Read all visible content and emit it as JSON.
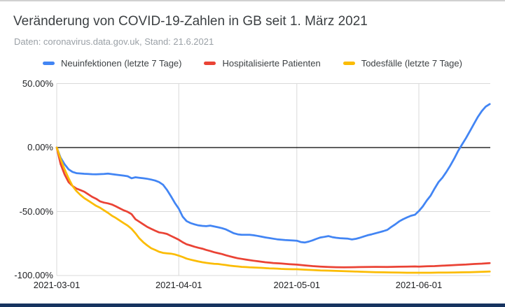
{
  "page": {
    "title": "Veränderung von COVID-19-Zahlen in GB seit 1. März 2021",
    "subtitle": "Daten: coronavirus.data.gov.uk, Stand: 21.6.2021"
  },
  "colors": {
    "series_blue": "#4285f4",
    "series_red": "#ea4335",
    "series_yellow": "#fbbc04",
    "grid": "#d9d9d9",
    "zero_line": "#000000",
    "title_text": "#3c4043",
    "subtitle_text": "#9aa0a6",
    "legend_text": "#3c4043",
    "tick_text": "#202124",
    "top_border": "#d0d0d0",
    "bottom_bar": "#16335f"
  },
  "chart_data": {
    "type": "line",
    "title": "Veränderung von COVID-19-Zahlen in GB seit 1. März 2021",
    "subtitle": "Daten: coronavirus.data.gov.uk, Stand: 21.6.2021",
    "xlabel": "",
    "ylabel": "",
    "grid": true,
    "legend_position": "top",
    "x_axis": {
      "tick_labels": [
        "2021-03-01",
        "2021-04-01",
        "2021-05-01",
        "2021-06-01"
      ],
      "tick_days": [
        0,
        31,
        61,
        92
      ],
      "range_days": [
        0,
        110
      ]
    },
    "y_axis": {
      "unit": "%",
      "tick_labels": [
        "50.00%",
        "0.00%",
        "-50.00%",
        "-100.00%"
      ],
      "tick_values": [
        50,
        0,
        -50,
        -100
      ],
      "range": [
        -100,
        50
      ]
    },
    "series": [
      {
        "name": "Neuinfektionen (letzte 7 Tage)",
        "color": "#4285f4",
        "points": [
          [
            0,
            0
          ],
          [
            1,
            -8
          ],
          [
            2,
            -13
          ],
          [
            3,
            -17
          ],
          [
            4,
            -19
          ],
          [
            5,
            -20
          ],
          [
            7,
            -20.5
          ],
          [
            9,
            -20.8
          ],
          [
            10,
            -20.9
          ],
          [
            12,
            -20.6
          ],
          [
            13,
            -20.4
          ],
          [
            15,
            -21.2
          ],
          [
            17,
            -21.9
          ],
          [
            18,
            -22.4
          ],
          [
            19,
            -24
          ],
          [
            20,
            -23.2
          ],
          [
            21,
            -23.6
          ],
          [
            22,
            -24
          ],
          [
            23,
            -24.4
          ],
          [
            24,
            -25
          ],
          [
            25,
            -25.8
          ],
          [
            26,
            -27
          ],
          [
            27,
            -29
          ],
          [
            28,
            -33
          ],
          [
            29,
            -38
          ],
          [
            30,
            -43.2
          ],
          [
            31,
            -47.7
          ],
          [
            32,
            -54
          ],
          [
            33,
            -57.5
          ],
          [
            34,
            -59
          ],
          [
            35,
            -60
          ],
          [
            36,
            -60.8
          ],
          [
            37,
            -61.2
          ],
          [
            38,
            -61.4
          ],
          [
            39,
            -61
          ],
          [
            41,
            -62.3
          ],
          [
            42,
            -63
          ],
          [
            43,
            -64
          ],
          [
            44,
            -65.5
          ],
          [
            45,
            -67
          ],
          [
            46,
            -67.8
          ],
          [
            47,
            -68.2
          ],
          [
            49,
            -68.2
          ],
          [
            50,
            -68.5
          ],
          [
            51,
            -69
          ],
          [
            52,
            -69.6
          ],
          [
            53,
            -70.2
          ],
          [
            54,
            -70.7
          ],
          [
            55,
            -71.2
          ],
          [
            56,
            -71.7
          ],
          [
            57,
            -72
          ],
          [
            58,
            -72.3
          ],
          [
            60,
            -72.6
          ],
          [
            61,
            -72.8
          ],
          [
            62,
            -73.8
          ],
          [
            63,
            -74.2
          ],
          [
            64,
            -73.5
          ],
          [
            65,
            -72.5
          ],
          [
            66,
            -71.3
          ],
          [
            67,
            -70.3
          ],
          [
            68,
            -69.8
          ],
          [
            69,
            -69.2
          ],
          [
            70,
            -70
          ],
          [
            71,
            -70.5
          ],
          [
            72,
            -70.8
          ],
          [
            74,
            -71.2
          ],
          [
            75,
            -71.8
          ],
          [
            76,
            -71.3
          ],
          [
            77,
            -70.5
          ],
          [
            78,
            -69.5
          ],
          [
            79,
            -68.5
          ],
          [
            80,
            -67.8
          ],
          [
            81,
            -67
          ],
          [
            82,
            -66.2
          ],
          [
            83,
            -65.3
          ],
          [
            84,
            -64.3
          ],
          [
            85,
            -62
          ],
          [
            86,
            -60
          ],
          [
            87,
            -57.7
          ],
          [
            88,
            -56
          ],
          [
            89,
            -54.6
          ],
          [
            90,
            -53.3
          ],
          [
            91,
            -52.5
          ],
          [
            92,
            -49.6
          ],
          [
            93,
            -46
          ],
          [
            94,
            -41.5
          ],
          [
            95,
            -37.5
          ],
          [
            96,
            -32
          ],
          [
            97,
            -27
          ],
          [
            98,
            -23.5
          ],
          [
            99,
            -19
          ],
          [
            100,
            -14
          ],
          [
            101,
            -8.5
          ],
          [
            102,
            -2.5
          ],
          [
            103,
            2.5
          ],
          [
            104,
            7.5
          ],
          [
            105,
            13
          ],
          [
            106,
            18.5
          ],
          [
            107,
            24
          ],
          [
            108,
            28.5
          ],
          [
            109,
            32
          ],
          [
            110,
            34
          ]
        ]
      },
      {
        "name": "Hospitalisierte Patienten",
        "color": "#ea4335",
        "points": [
          [
            0,
            0
          ],
          [
            1,
            -13
          ],
          [
            2,
            -21
          ],
          [
            3,
            -27
          ],
          [
            4,
            -30
          ],
          [
            5,
            -32
          ],
          [
            6,
            -33.2
          ],
          [
            7,
            -34.5
          ],
          [
            8,
            -36.5
          ],
          [
            9,
            -38.5
          ],
          [
            10,
            -40
          ],
          [
            11,
            -42
          ],
          [
            12,
            -43
          ],
          [
            13,
            -43.6
          ],
          [
            14,
            -44.5
          ],
          [
            15,
            -45.9
          ],
          [
            16,
            -47.5
          ],
          [
            17,
            -49
          ],
          [
            18,
            -50.2
          ],
          [
            19,
            -52
          ],
          [
            20,
            -56
          ],
          [
            21,
            -58
          ],
          [
            22,
            -60
          ],
          [
            23,
            -62
          ],
          [
            24,
            -63.5
          ],
          [
            25,
            -65
          ],
          [
            26,
            -66.3
          ],
          [
            27,
            -66.8
          ],
          [
            28,
            -67.5
          ],
          [
            29,
            -69
          ],
          [
            30,
            -70.5
          ],
          [
            31,
            -72
          ],
          [
            32,
            -74
          ],
          [
            33,
            -75.6
          ],
          [
            34,
            -76.5
          ],
          [
            35,
            -77.5
          ],
          [
            36,
            -78.3
          ],
          [
            37,
            -79
          ],
          [
            38,
            -80
          ],
          [
            39,
            -80.8
          ],
          [
            40,
            -81.8
          ],
          [
            41,
            -82.5
          ],
          [
            42,
            -83.2
          ],
          [
            43,
            -84.2
          ],
          [
            44,
            -85
          ],
          [
            45,
            -85.8
          ],
          [
            46,
            -86.5
          ],
          [
            47,
            -87
          ],
          [
            48,
            -87.5
          ],
          [
            49,
            -88
          ],
          [
            50,
            -88.4
          ],
          [
            51,
            -88.8
          ],
          [
            52,
            -89.2
          ],
          [
            53,
            -89.6
          ],
          [
            54,
            -89.9
          ],
          [
            55,
            -90.2
          ],
          [
            57,
            -90.6
          ],
          [
            59,
            -91.1
          ],
          [
            61,
            -91.5
          ],
          [
            63,
            -92.1
          ],
          [
            65,
            -92.6
          ],
          [
            67,
            -93
          ],
          [
            69,
            -93.3
          ],
          [
            71,
            -93.5
          ],
          [
            73,
            -93.6
          ],
          [
            75,
            -93.5
          ],
          [
            77,
            -93.4
          ],
          [
            79,
            -93.3
          ],
          [
            81,
            -93.2
          ],
          [
            84,
            -93.3
          ],
          [
            87,
            -93.1
          ],
          [
            89,
            -93
          ],
          [
            91,
            -92.9
          ],
          [
            92,
            -93
          ],
          [
            94,
            -92.8
          ],
          [
            96,
            -92.6
          ],
          [
            98,
            -92.3
          ],
          [
            100,
            -92
          ],
          [
            102,
            -91.7
          ],
          [
            104,
            -91.4
          ],
          [
            106,
            -91
          ],
          [
            108,
            -90.7
          ],
          [
            110,
            -90.3
          ]
        ]
      },
      {
        "name": "Todesfälle (letzte 7 Tage)",
        "color": "#fbbc04",
        "points": [
          [
            0,
            0
          ],
          [
            1,
            -9
          ],
          [
            2,
            -17
          ],
          [
            3,
            -24
          ],
          [
            4,
            -30
          ],
          [
            5,
            -34
          ],
          [
            6,
            -37
          ],
          [
            7,
            -39.5
          ],
          [
            8,
            -41.5
          ],
          [
            9,
            -43.5
          ],
          [
            10,
            -45.5
          ],
          [
            11,
            -47
          ],
          [
            12,
            -49
          ],
          [
            13,
            -51
          ],
          [
            14,
            -53.2
          ],
          [
            15,
            -55
          ],
          [
            16,
            -57
          ],
          [
            17,
            -59
          ],
          [
            18,
            -61
          ],
          [
            19,
            -63.5
          ],
          [
            20,
            -67
          ],
          [
            21,
            -71
          ],
          [
            22,
            -74
          ],
          [
            23,
            -76.5
          ],
          [
            24,
            -78.7
          ],
          [
            25,
            -80
          ],
          [
            26,
            -81.4
          ],
          [
            27,
            -82.3
          ],
          [
            28,
            -82.6
          ],
          [
            29,
            -82.9
          ],
          [
            30,
            -83.5
          ],
          [
            31,
            -84.5
          ],
          [
            32,
            -85.5
          ],
          [
            33,
            -86.8
          ],
          [
            34,
            -87.6
          ],
          [
            35,
            -88.3
          ],
          [
            36,
            -89
          ],
          [
            37,
            -89.6
          ],
          [
            38,
            -90.1
          ],
          [
            39,
            -90.5
          ],
          [
            40,
            -90.8
          ],
          [
            41,
            -91
          ],
          [
            42,
            -91.4
          ],
          [
            43,
            -91.8
          ],
          [
            44,
            -92.3
          ],
          [
            45,
            -92.6
          ],
          [
            46,
            -92.9
          ],
          [
            47,
            -93.2
          ],
          [
            48,
            -93.4
          ],
          [
            49,
            -93.6
          ],
          [
            50,
            -93.7
          ],
          [
            51,
            -93.8
          ],
          [
            52,
            -94
          ],
          [
            53,
            -94.2
          ],
          [
            54,
            -94.4
          ],
          [
            55,
            -94.5
          ],
          [
            56,
            -94.6
          ],
          [
            57,
            -94.8
          ],
          [
            58,
            -94.9
          ],
          [
            59,
            -95
          ],
          [
            60,
            -95.1
          ],
          [
            61,
            -95.1
          ],
          [
            63,
            -95.4
          ],
          [
            65,
            -95.7
          ],
          [
            67,
            -96
          ],
          [
            69,
            -96.2
          ],
          [
            71,
            -96.4
          ],
          [
            73,
            -96.6
          ],
          [
            75,
            -96.8
          ],
          [
            77,
            -97
          ],
          [
            79,
            -97.2
          ],
          [
            81,
            -97.4
          ],
          [
            83,
            -97.5
          ],
          [
            85,
            -97.6
          ],
          [
            87,
            -97.7
          ],
          [
            89,
            -97.8
          ],
          [
            91,
            -97.8
          ],
          [
            93,
            -97.8
          ],
          [
            95,
            -97.8
          ],
          [
            97,
            -97.7
          ],
          [
            99,
            -97.7
          ],
          [
            101,
            -97.6
          ],
          [
            103,
            -97.5
          ],
          [
            105,
            -97.4
          ],
          [
            107,
            -97.2
          ],
          [
            109,
            -97
          ],
          [
            110,
            -96.9
          ]
        ]
      }
    ]
  }
}
